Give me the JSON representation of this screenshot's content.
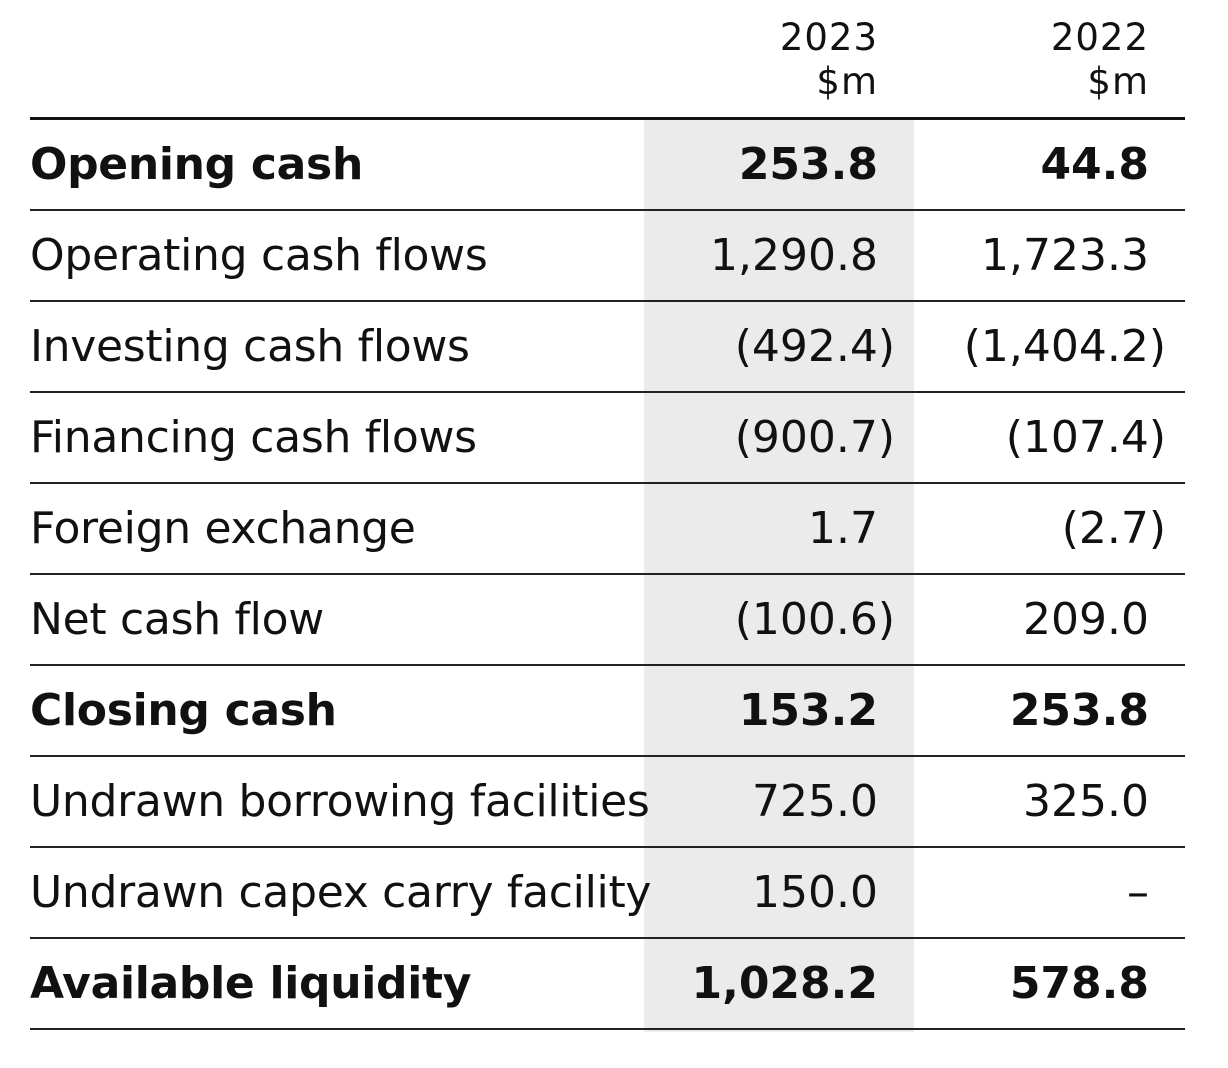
{
  "columns": [
    {
      "year": "2023",
      "unit": "$m"
    },
    {
      "year": "2022",
      "unit": "$m"
    }
  ],
  "rows": [
    {
      "label": "Opening cash",
      "v2023": "253.8",
      "v2022": "44.8",
      "bold": true
    },
    {
      "label": "Operating cash flows",
      "v2023": "1,290.8",
      "v2022": "1,723.3",
      "bold": false
    },
    {
      "label": "Investing cash flows",
      "v2023": "(492.4)",
      "v2022": "(1,404.2)",
      "bold": false
    },
    {
      "label": "Financing cash flows",
      "v2023": "(900.7)",
      "v2022": "(107.4)",
      "bold": false
    },
    {
      "label": "Foreign exchange",
      "v2023": "1.7",
      "v2022": "(2.7)",
      "bold": false
    },
    {
      "label": "Net cash flow",
      "v2023": "(100.6)",
      "v2022": "209.0",
      "bold": false
    },
    {
      "label": "Closing cash",
      "v2023": "153.2",
      "v2022": "253.8",
      "bold": true
    },
    {
      "label": "Undrawn borrowing facilities",
      "v2023": "725.0",
      "v2022": "325.0",
      "bold": false
    },
    {
      "label": "Undrawn capex carry facility",
      "v2023": "150.0",
      "v2022": "–",
      "bold": false
    },
    {
      "label": "Available liquidity",
      "v2023": "1,028.2",
      "v2022": "578.8",
      "bold": true
    }
  ],
  "colors": {
    "highlight_column": "#ebebeb",
    "text": "#111111",
    "rule": "#222222"
  }
}
